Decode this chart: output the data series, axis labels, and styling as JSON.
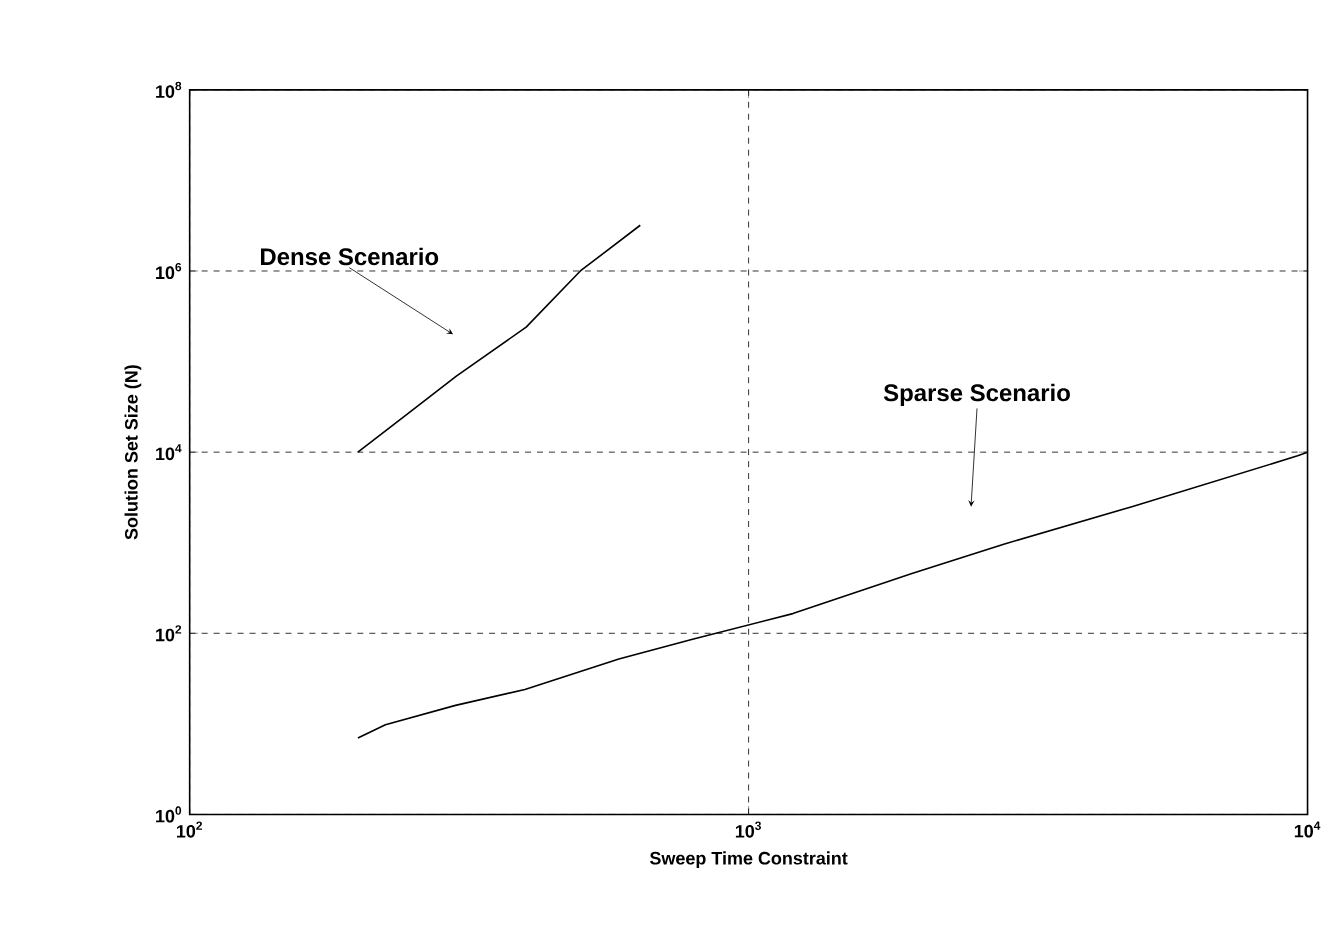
{
  "chart_data": {
    "type": "line",
    "xlabel": "Sweep Time Constraint",
    "ylabel": "Solution Set Size (N)",
    "log": "xy",
    "grid": true,
    "line_style": "solid",
    "marker": "none",
    "xlim": [
      100,
      10000
    ],
    "ylim": [
      1,
      100000000
    ],
    "xticks": [
      {
        "value": 100,
        "label": "10$^{2}$"
      },
      {
        "value": 1000,
        "label": "10$^{3}$"
      },
      {
        "value": 10000,
        "label": "10$^{4}$"
      }
    ],
    "yticks": [
      {
        "value": 1,
        "label": "10$^{0}$"
      },
      {
        "value": 100,
        "label": "10$^{2}$"
      },
      {
        "value": 10000,
        "label": "10$^{4}$"
      },
      {
        "value": 1000000,
        "label": "10$^{6}$"
      },
      {
        "value": 100000000,
        "label": "10$^{8}$"
      }
    ],
    "series": [
      {
        "color": "#000000",
        "x": [
          200,
          250,
          300,
          400,
          500,
          640
        ],
        "values": [
          10000,
          29000,
          69000,
          240000,
          1000000,
          3200000
        ]
      },
      {
        "color": "#000000",
        "x": [
          200,
          224,
          299,
          398,
          586,
          794,
          1200,
          1960,
          2870,
          4850,
          9600,
          10000
        ],
        "values": [
          7,
          9.8,
          16,
          24,
          52,
          86,
          165,
          457,
          970,
          2500,
          9100,
          10000
        ]
      }
    ],
    "annotations": [
      {
        "text": "Dense Scenario",
        "x": 296,
        "y": 200000
      },
      {
        "text": "Sparse Scenario",
        "x": 2500,
        "y": 2500
      }
    ]
  }
}
